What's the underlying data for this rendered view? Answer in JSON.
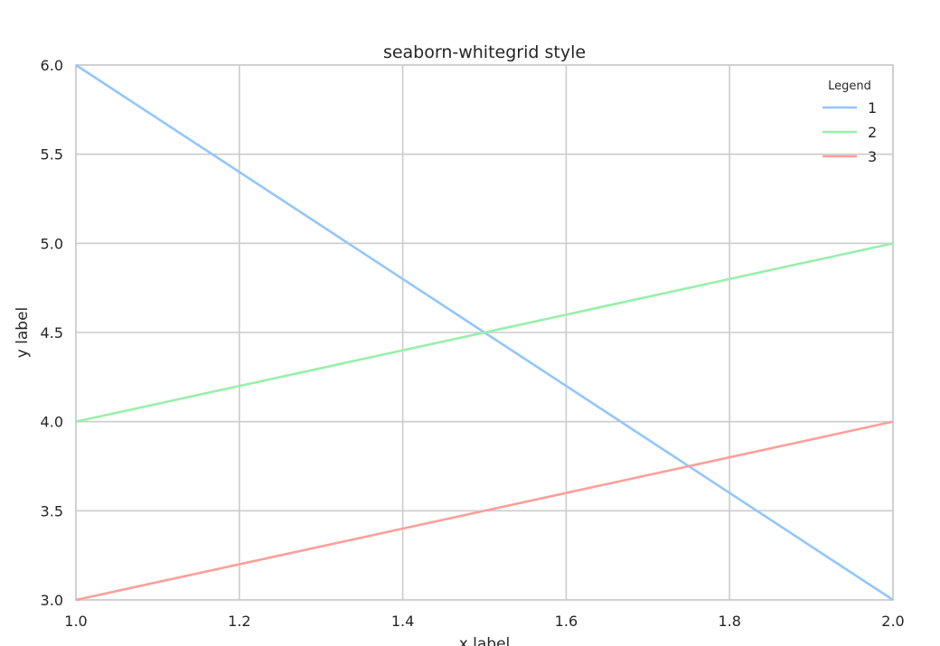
{
  "chart_data": {
    "type": "line",
    "title": "seaborn-whitegrid style",
    "xlabel": "x label",
    "ylabel": "y label",
    "xlim": [
      1.0,
      2.0
    ],
    "ylim": [
      3.0,
      6.0
    ],
    "x_ticks": [
      "1.0",
      "1.2",
      "1.4",
      "1.6",
      "1.8",
      "2.0"
    ],
    "y_ticks": [
      "3.0",
      "3.5",
      "4.0",
      "4.5",
      "5.0",
      "5.5",
      "6.0"
    ],
    "grid": true,
    "legend": {
      "title": "Legend",
      "placement": "top-right"
    },
    "series": [
      {
        "name": "1",
        "color": "#92c6ff",
        "x": [
          1.0,
          2.0
        ],
        "y": [
          6.0,
          3.0
        ]
      },
      {
        "name": "2",
        "color": "#97f0aa",
        "x": [
          1.0,
          2.0
        ],
        "y": [
          4.0,
          5.0
        ]
      },
      {
        "name": "3",
        "color": "#ff9f9a",
        "x": [
          1.0,
          2.0
        ],
        "y": [
          3.0,
          4.0
        ]
      }
    ]
  }
}
